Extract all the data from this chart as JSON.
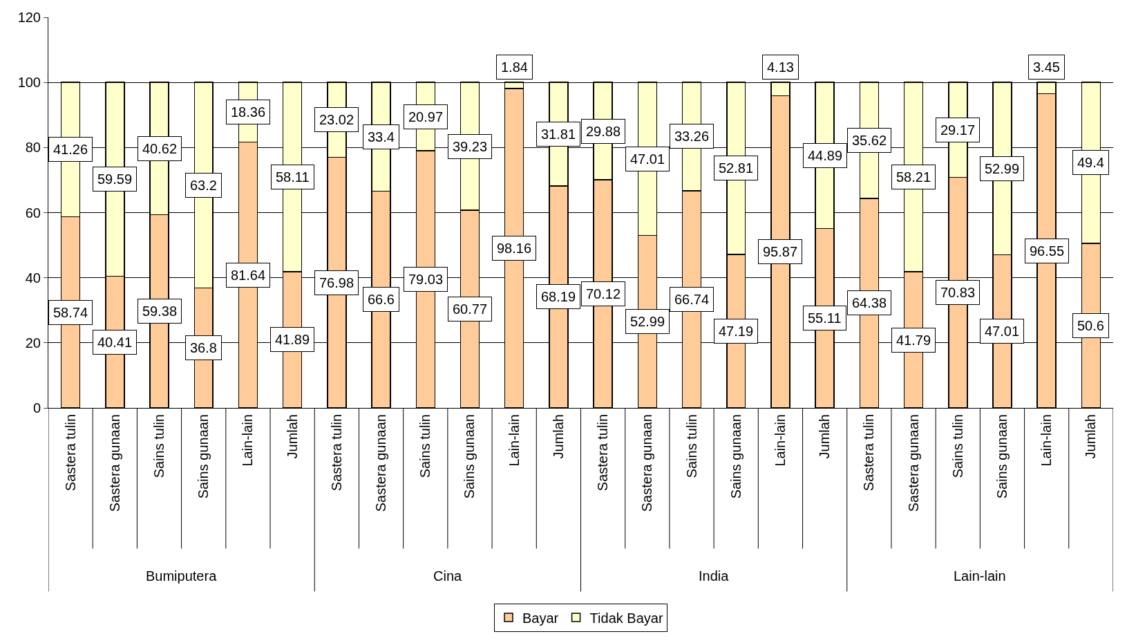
{
  "chart_data": {
    "type": "bar",
    "stacked": true,
    "categories": [
      "Sastera tulin",
      "Sastera gunaan",
      "Sains tulin",
      "Sains gunaan",
      "Lain-lain",
      "Jumlah",
      "Sastera tulin",
      "Sastera gunaan",
      "Sains tulin",
      "Sains gunaan",
      "Lain-lain",
      "Jumlah",
      "Sastera tulin",
      "Sastera gunaan",
      "Sains tulin",
      "Sains gunaan",
      "Lain-lain",
      "Jumlah",
      "Sastera tulin",
      "Sastera gunaan",
      "Sains tulin",
      "Sains gunaan",
      "Lain-lain",
      "Jumlah"
    ],
    "series": [
      {
        "name": "Bayar",
        "color": "#ffcc99",
        "values": [
          58.74,
          40.41,
          59.38,
          36.8,
          81.64,
          41.89,
          76.98,
          66.6,
          79.03,
          60.77,
          98.16,
          68.19,
          70.12,
          52.99,
          66.74,
          47.19,
          95.87,
          55.11,
          64.38,
          41.79,
          70.83,
          47.01,
          96.55,
          50.6
        ]
      },
      {
        "name": "Tidak Bayar",
        "color": "#ffffcc",
        "values": [
          41.26,
          59.59,
          40.62,
          63.2,
          18.36,
          58.11,
          23.02,
          33.4,
          20.97,
          39.23,
          1.84,
          31.81,
          29.88,
          47.01,
          33.26,
          52.81,
          4.13,
          44.89,
          35.62,
          58.21,
          29.17,
          52.99,
          3.45,
          49.4
        ]
      }
    ],
    "annotations": [
      "Bumiputera",
      "Cina",
      "India",
      "Lain-lain"
    ],
    "ylim": [
      0,
      120
    ],
    "yticks": [
      0,
      20,
      40,
      60,
      80,
      100,
      120
    ],
    "grid": "y",
    "legend": "bottom",
    "data_labels": true
  }
}
